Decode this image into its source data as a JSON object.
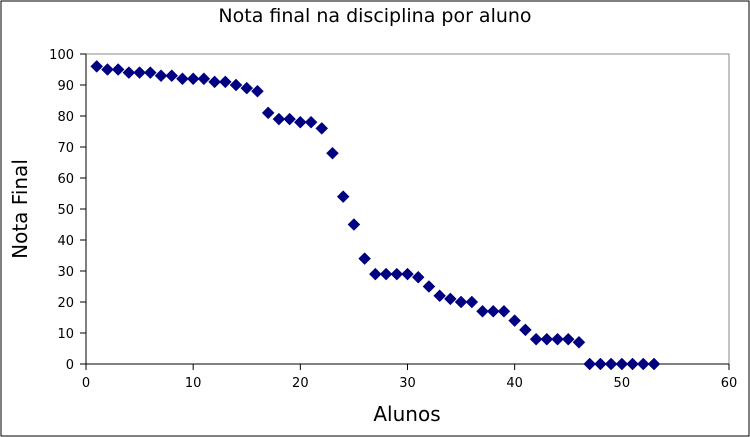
{
  "chart_data": {
    "type": "scatter",
    "title": "Nota final na disciplina por aluno",
    "xlabel": "Alunos",
    "ylabel": "Nota Final",
    "xlim": [
      0,
      60
    ],
    "ylim": [
      0,
      100
    ],
    "xticks": [
      0,
      10,
      20,
      30,
      40,
      50,
      60
    ],
    "yticks": [
      0,
      10,
      20,
      30,
      40,
      50,
      60,
      70,
      80,
      90,
      100
    ],
    "grid": false,
    "legend": "none",
    "marker": "diamond",
    "marker_color": "#000080",
    "series": [
      {
        "x": [
          1,
          2,
          3,
          4,
          5,
          6,
          7,
          8,
          9,
          10,
          11,
          12,
          13,
          14,
          15,
          16,
          17,
          18,
          19,
          20,
          21,
          22,
          23,
          24,
          25,
          26,
          27,
          28,
          29,
          30,
          31,
          32,
          33,
          34,
          35,
          36,
          37,
          38,
          39,
          40,
          41,
          42,
          43,
          44,
          45,
          46,
          47,
          48,
          49,
          50,
          51,
          52,
          53
        ],
        "y": [
          96,
          95,
          95,
          94,
          94,
          94,
          93,
          93,
          92,
          92,
          92,
          91,
          91,
          90,
          89,
          88,
          81,
          79,
          79,
          78,
          78,
          76,
          68,
          54,
          45,
          34,
          29,
          29,
          29,
          29,
          28,
          25,
          22,
          21,
          20,
          20,
          17,
          17,
          17,
          14,
          11,
          8,
          8,
          8,
          8,
          7,
          0,
          0,
          0,
          0,
          0,
          0,
          0
        ]
      }
    ]
  }
}
